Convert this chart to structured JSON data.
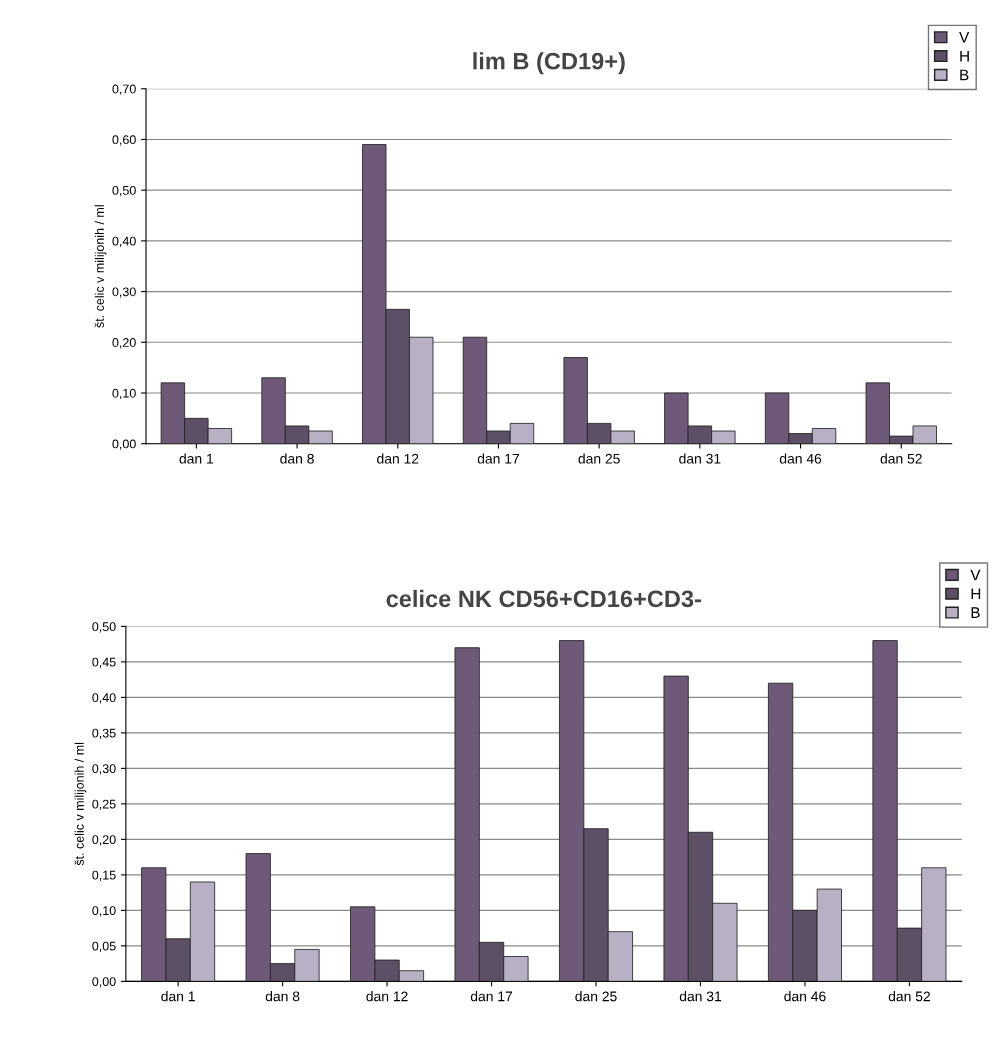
{
  "chart_data": [
    {
      "type": "bar",
      "title": "lim B (CD19+)",
      "ylabel": "št. celic v milijonih / ml",
      "categories": [
        "dan 1",
        "dan 8",
        "dan 12",
        "dan 17",
        "dan 25",
        "dan 31",
        "dan 46",
        "dan 52"
      ],
      "series": [
        {
          "name": "V",
          "color": "#6e5a78",
          "values": [
            0.12,
            0.13,
            0.59,
            0.21,
            0.17,
            0.1,
            0.1,
            0.12
          ]
        },
        {
          "name": "H",
          "color": "#5c4f66",
          "values": [
            0.05,
            0.035,
            0.265,
            0.025,
            0.04,
            0.035,
            0.02,
            0.015
          ]
        },
        {
          "name": "B",
          "color": "#b8b0c4",
          "values": [
            0.03,
            0.025,
            0.21,
            0.04,
            0.025,
            0.025,
            0.03,
            0.035
          ]
        }
      ],
      "ylim": [
        0,
        0.7
      ],
      "yticks": [
        {
          "value": 0,
          "label": "0,00"
        },
        {
          "value": 0.1,
          "label": "0,10"
        },
        {
          "value": 0.2,
          "label": "0,20"
        },
        {
          "value": 0.3,
          "label": "0,30"
        },
        {
          "value": 0.4,
          "label": "0,40"
        },
        {
          "value": 0.5,
          "label": "0,50"
        },
        {
          "value": 0.6,
          "label": "0,60"
        },
        {
          "value": 0.7,
          "label": "0,70"
        }
      ],
      "grid": "y",
      "legend": "top right"
    },
    {
      "type": "bar",
      "title": "celice NK CD56+CD16+CD3-",
      "ylabel": "št. celic v milijonih / ml",
      "categories": [
        "dan 1",
        "dan 8",
        "dan 12",
        "dan 17",
        "dan 25",
        "dan 31",
        "dan 46",
        "dan 52"
      ],
      "series": [
        {
          "name": "V",
          "color": "#6e5a78",
          "values": [
            0.16,
            0.18,
            0.105,
            0.47,
            0.48,
            0.43,
            0.42,
            0.48
          ]
        },
        {
          "name": "H",
          "color": "#5c4f66",
          "values": [
            0.06,
            0.025,
            0.03,
            0.055,
            0.215,
            0.21,
            0.1,
            0.075
          ]
        },
        {
          "name": "B",
          "color": "#b8b0c4",
          "values": [
            0.14,
            0.045,
            0.015,
            0.035,
            0.07,
            0.11,
            0.13,
            0.16
          ]
        }
      ],
      "ylim": [
        0,
        0.5
      ],
      "yticks": [
        {
          "value": 0,
          "label": "0,00"
        },
        {
          "value": 0.05,
          "label": "0,05"
        },
        {
          "value": 0.1,
          "label": "0,10"
        },
        {
          "value": 0.15,
          "label": "0,15"
        },
        {
          "value": 0.2,
          "label": "0,20"
        },
        {
          "value": 0.25,
          "label": "0,25"
        },
        {
          "value": 0.3,
          "label": "0,30"
        },
        {
          "value": 0.35,
          "label": "0,35"
        },
        {
          "value": 0.4,
          "label": "0,40"
        },
        {
          "value": 0.45,
          "label": "0,45"
        },
        {
          "value": 0.5,
          "label": "0,50"
        }
      ],
      "grid": "y",
      "legend": "top right"
    }
  ]
}
